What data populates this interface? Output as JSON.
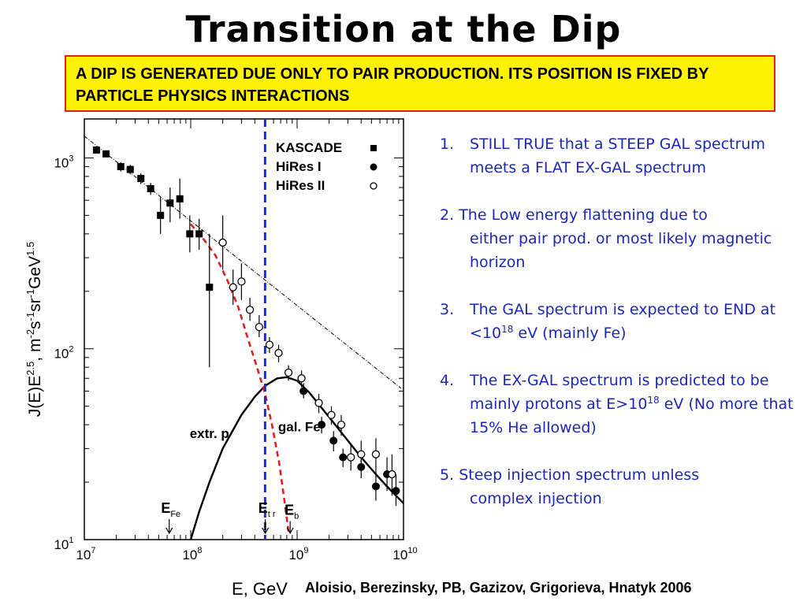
{
  "slide": {
    "title": "Transition at the Dip",
    "callout": "A DIP IS GENERATED DUE ONLY TO PAIR PRODUCTION. ITS POSITION IS FIXED BY PARTICLE PHYSICS INTERACTIONS",
    "citation": "Aloisio, Berezinsky, PB, Gazizov, Grigorieva, Hnatyk 2006"
  },
  "notes": [
    {
      "num": "1.",
      "text": "STILL TRUE that a STEEP GAL spectrum meets a FLAT EX-GAL spectrum"
    },
    {
      "num": "2.",
      "first": "The Low energy flattening due to",
      "rest": "either pair prod. or most  likely magnetic horizon"
    },
    {
      "num": "3.",
      "pre": "The GAL spectrum is expected  to END at <10",
      "sup": "18",
      "post": " eV (mainly Fe)"
    },
    {
      "num": "4.",
      "pre": "The EX-GAL spectrum is predicted to be mainly protons at E>10",
      "sup": "18",
      "post": " eV (No more that 15% He allowed)"
    },
    {
      "num": "5.",
      "first": "Steep injection spectrum unless",
      "rest": "complex injection"
    }
  ],
  "chart_data": {
    "type": "scatter",
    "x_scale": "log",
    "y_scale": "log",
    "xlim": [
      10000000.0,
      10000000000.0
    ],
    "ylim": [
      10,
      1600
    ],
    "xlabel": "E, GeV",
    "ylabel": "J(E)E^2.5, m^-2 s^-1 sr^-1 GeV^1.5",
    "x_ticks": [
      {
        "v": 10000000.0,
        "b": "10",
        "e": "7"
      },
      {
        "v": 100000000.0,
        "b": "10",
        "e": "8"
      },
      {
        "v": 1000000000.0,
        "b": "10",
        "e": "9"
      },
      {
        "v": 10000000000.0,
        "b": "10",
        "e": "10"
      }
    ],
    "y_ticks": [
      {
        "v": 10,
        "b": "10",
        "e": "1"
      },
      {
        "v": 100,
        "b": "10",
        "e": "2"
      },
      {
        "v": 1000,
        "b": "10",
        "e": "3"
      }
    ],
    "legend_position": "top-right",
    "series": [
      {
        "name": "KASCADE",
        "marker": "square",
        "points": [
          [
            13000000.0,
            1100,
            1100,
            1100
          ],
          [
            16000000.0,
            1050,
            1050,
            1050
          ],
          [
            22000000.0,
            900,
            850,
            950
          ],
          [
            27000000.0,
            870,
            820,
            920
          ],
          [
            34000000.0,
            780,
            730,
            830
          ],
          [
            42000000.0,
            690,
            640,
            740
          ],
          [
            52000000.0,
            500,
            400,
            620
          ],
          [
            64000000.0,
            580,
            460,
            700
          ],
          [
            79000000.0,
            610,
            480,
            780
          ],
          [
            98000000.0,
            400,
            320,
            500
          ],
          [
            120000000.0,
            400,
            330,
            480
          ],
          [
            150000000.0,
            210,
            80,
            400
          ]
        ]
      },
      {
        "name": "HiRes I",
        "marker": "filled-circle",
        "points": [
          [
            1150000000.0,
            60,
            55,
            66
          ],
          [
            1700000000.0,
            40,
            36,
            44
          ],
          [
            2200000000.0,
            33,
            29,
            37
          ],
          [
            2700000000.0,
            27,
            24,
            30
          ],
          [
            4000000000.0,
            24,
            21,
            28
          ],
          [
            5500000000.0,
            19,
            16,
            23
          ],
          [
            7000000000.0,
            22,
            18,
            27
          ],
          [
            8500000000.0,
            18,
            15,
            22
          ]
        ]
      },
      {
        "name": "HiRes II",
        "marker": "open-circle",
        "points": [
          [
            200000000.0,
            360,
            260,
            500
          ],
          [
            250000000.0,
            210,
            170,
            260
          ],
          [
            300000000.0,
            225,
            180,
            280
          ],
          [
            360000000.0,
            160,
            140,
            185
          ],
          [
            440000000.0,
            130,
            115,
            150
          ],
          [
            550000000.0,
            105,
            95,
            115
          ],
          [
            670000000.0,
            95,
            85,
            105
          ],
          [
            830000000.0,
            75,
            68,
            82
          ],
          [
            1100000000.0,
            70,
            63,
            77
          ],
          [
            1600000000.0,
            52,
            46,
            58
          ],
          [
            2100000000.0,
            45,
            40,
            50
          ],
          [
            2600000000.0,
            40,
            35,
            45
          ],
          [
            3200000000.0,
            27,
            23,
            32
          ],
          [
            4000000000.0,
            28,
            24,
            33
          ],
          [
            5500000000.0,
            28,
            23,
            34
          ],
          [
            7800000000.0,
            22,
            17,
            28
          ]
        ]
      }
    ],
    "curves": [
      {
        "name": "extr. p",
        "style": "solid",
        "points": [
          [
            100000000.0,
            10
          ],
          [
            120000000.0,
            14
          ],
          [
            150000000.0,
            20
          ],
          [
            200000000.0,
            30
          ],
          [
            300000000.0,
            45
          ],
          [
            400000000.0,
            56
          ],
          [
            500000000.0,
            64
          ],
          [
            650000000.0,
            70
          ],
          [
            800000000.0,
            71
          ],
          [
            1000000000.0,
            68
          ],
          [
            1300000000.0,
            59
          ],
          [
            1700000000.0,
            49
          ],
          [
            2200000000.0,
            41
          ],
          [
            3000000000.0,
            33
          ],
          [
            4000000000.0,
            27
          ],
          [
            5500000000.0,
            22
          ],
          [
            7000000000.0,
            19
          ],
          [
            8500000000.0,
            17
          ],
          [
            10000000000.0,
            15.5
          ]
        ]
      },
      {
        "name": "gal. Fe",
        "style": "dashed",
        "color": "#e02020",
        "points": [
          [
            100000000.0,
            450
          ],
          [
            130000000.0,
            380
          ],
          [
            170000000.0,
            310
          ],
          [
            220000000.0,
            230
          ],
          [
            280000000.0,
            165
          ],
          [
            350000000.0,
            110
          ],
          [
            420000000.0,
            80
          ],
          [
            500000000.0,
            58
          ],
          [
            580000000.0,
            40
          ],
          [
            680000000.0,
            25
          ],
          [
            760000000.0,
            16
          ],
          [
            830000000.0,
            11
          ]
        ]
      },
      {
        "name": "power law",
        "style": "dash-dot",
        "points": [
          [
            10000000.0,
            1300
          ],
          [
            9500000000.0,
            62
          ]
        ]
      }
    ],
    "vertical_line": {
      "x": 500000000.0,
      "color": "#1c2bd8",
      "style": "dashed"
    },
    "annotations": [
      {
        "text": "extr. p",
        "x": 150000000.0,
        "y": 34
      },
      {
        "text": "gal. Fe",
        "x": 1050000000.0,
        "y": 37
      },
      {
        "text": "E",
        "sub": "Fe",
        "x": 65000000.0,
        "y": 13.8,
        "arrow_to": 10.8
      },
      {
        "text": "E",
        "sub": "t r",
        "x": 520000000.0,
        "y": 13.8,
        "arrow_to": 10.8
      },
      {
        "text": "E",
        "sub": "b",
        "x": 890000000.0,
        "y": 13.5,
        "arrow_to": 10.8
      }
    ]
  }
}
